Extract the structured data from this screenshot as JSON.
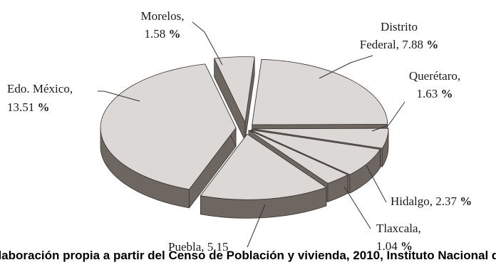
{
  "chart_data": {
    "type": "pie",
    "style": "3d-exploded",
    "slices": [
      {
        "name": "Distrito Federal",
        "label_lines": [
          "Distrito",
          "Federal, 7.88"
        ],
        "value": 7.88,
        "unit": "%"
      },
      {
        "name": "Querétaro",
        "label_lines": [
          "Querétaro,",
          "1.63"
        ],
        "value": 1.63,
        "unit": "%"
      },
      {
        "name": "Hidalgo",
        "label_lines": [
          "Hidalgo, 2.37"
        ],
        "value": 2.37,
        "unit": "%"
      },
      {
        "name": "Tlaxcala",
        "label_lines": [
          "Tlaxcala,",
          "1.04"
        ],
        "value": 1.04,
        "unit": "%"
      },
      {
        "name": "Puebla",
        "label_lines": [
          "Puebla, 5.15"
        ],
        "value": 5.15,
        "unit": ""
      },
      {
        "name": "Edo. México",
        "label_lines": [
          "Edo. México,",
          "13.51"
        ],
        "value": 13.51,
        "unit": "%"
      },
      {
        "name": "Morelos",
        "label_lines": [
          "Morelos,",
          "1.58"
        ],
        "value": 1.58,
        "unit": "%"
      }
    ],
    "colors": {
      "top": "#dcd8d5",
      "side": "#6e6661",
      "edge": "#3a3532"
    }
  },
  "caption": "Fuente: Elaboración propia a partir del Censo de Población y vivienda, 2010, Instituto Nacional de Estadística y Geografía"
}
